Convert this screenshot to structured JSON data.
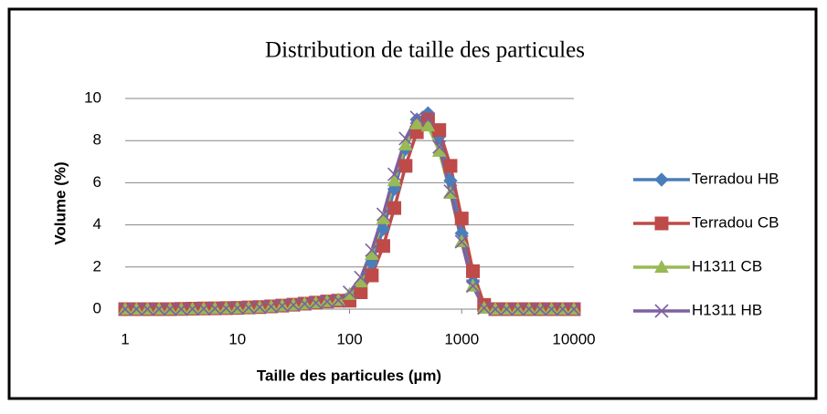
{
  "chart_data": {
    "type": "line",
    "title": "Distribution de taille des particules",
    "x_label": "Taille des particules (µm)",
    "y_label": "Volume (%)",
    "xscale": "log",
    "xlim": [
      1,
      10000
    ],
    "xticks": [
      1,
      10,
      100,
      1000,
      10000
    ],
    "ylim": [
      0,
      10
    ],
    "yticks": [
      0,
      2,
      4,
      6,
      8,
      10
    ],
    "grid": true,
    "legend": "right",
    "x": [
      1,
      1.26,
      1.58,
      2,
      2.51,
      3.16,
      3.98,
      5.01,
      6.31,
      7.94,
      10,
      12.6,
      15.8,
      20,
      25.1,
      31.6,
      39.8,
      50.1,
      63.1,
      79.4,
      100,
      126,
      158,
      200,
      251,
      316,
      398,
      501,
      631,
      794,
      1000,
      1259,
      1585,
      1995,
      2512,
      3162,
      3981,
      5012,
      6310,
      7943,
      10000
    ],
    "series": [
      {
        "name": "Terradou HB",
        "color": "#4a7ebb",
        "marker": "diamond",
        "values": [
          0,
          0,
          0,
          0,
          0,
          0.01,
          0.02,
          0.03,
          0.04,
          0.05,
          0.06,
          0.08,
          0.1,
          0.13,
          0.17,
          0.21,
          0.26,
          0.31,
          0.37,
          0.44,
          0.6,
          1.1,
          2.2,
          3.8,
          5.7,
          7.6,
          9.0,
          9.3,
          8.2,
          6.1,
          3.6,
          1.3,
          0.1,
          0,
          0,
          0,
          0,
          0,
          0,
          0,
          0
        ]
      },
      {
        "name": "Terradou CB",
        "color": "#be4b48",
        "marker": "square",
        "values": [
          0,
          0,
          0,
          0,
          0,
          0.01,
          0.02,
          0.03,
          0.04,
          0.05,
          0.06,
          0.08,
          0.1,
          0.13,
          0.17,
          0.21,
          0.26,
          0.31,
          0.36,
          0.4,
          0.4,
          0.8,
          1.6,
          3.0,
          4.8,
          6.8,
          8.4,
          9.0,
          8.5,
          6.8,
          4.3,
          1.8,
          0.2,
          0,
          0,
          0,
          0,
          0,
          0,
          0,
          0
        ]
      },
      {
        "name": "H1311 CB",
        "color": "#98b954",
        "marker": "triangle",
        "values": [
          0,
          0,
          0,
          0,
          0,
          0,
          0.01,
          0.02,
          0.03,
          0.04,
          0.05,
          0.07,
          0.09,
          0.12,
          0.16,
          0.2,
          0.25,
          0.3,
          0.36,
          0.42,
          0.7,
          1.3,
          2.6,
          4.3,
          6.1,
          7.8,
          8.8,
          8.7,
          7.5,
          5.5,
          3.2,
          1.1,
          0.05,
          0,
          0,
          0,
          0,
          0,
          0,
          0,
          0
        ]
      },
      {
        "name": "H1311 HB",
        "color": "#7d60a0",
        "marker": "x",
        "values": [
          0,
          0,
          0,
          0,
          0,
          0,
          0.01,
          0.02,
          0.03,
          0.04,
          0.05,
          0.07,
          0.09,
          0.12,
          0.16,
          0.2,
          0.25,
          0.3,
          0.36,
          0.42,
          0.8,
          1.5,
          2.8,
          4.5,
          6.4,
          8.1,
          9.1,
          9.0,
          7.7,
          5.6,
          3.2,
          1.1,
          0.05,
          0,
          0,
          0,
          0,
          0,
          0,
          0,
          0
        ]
      }
    ]
  }
}
